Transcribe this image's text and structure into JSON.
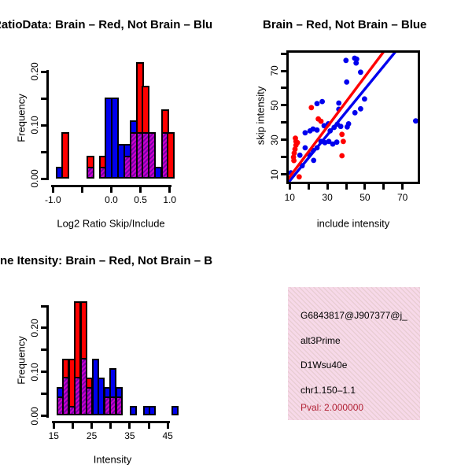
{
  "colors": {
    "red": "#ff0000",
    "blue": "#0000ee",
    "overlap_stripe_light": "#cc00cc",
    "overlap_stripe_dark": "#7a00a8",
    "axis": "#000000",
    "info_box_bg": "#f7d9e9",
    "info_box_hatch": "#cdb6a8",
    "pval_text": "#b22235"
  },
  "chart_data": [
    {
      "name": "ratio-histogram",
      "type": "bar",
      "title": "RatioData: Brain – Red, Not Brain – Blu",
      "xlabel": "Log2 Ratio Skip/Include",
      "ylabel": "Frequency",
      "xlim": [
        -1.0,
        1.1
      ],
      "ylim": [
        0,
        0.2
      ],
      "grid": false,
      "legend": "red = Brain, blue = Not Brain, purple hatch = overlap",
      "bin_width": 0.105,
      "xticks": [
        {
          "v": -1.0,
          "l": "-1.0"
        },
        {
          "v": -0.5,
          "l": ""
        },
        {
          "v": 0.0,
          "l": "0.0"
        },
        {
          "v": 0.5,
          "l": "0.5"
        },
        {
          "v": 1.0,
          "l": "1.0"
        }
      ],
      "yticks": [
        {
          "v": 0.0,
          "l": "0.00"
        },
        {
          "v": 0.05,
          "l": ""
        },
        {
          "v": 0.1,
          "l": "0.10"
        },
        {
          "v": 0.15,
          "l": ""
        },
        {
          "v": 0.2,
          "l": "0.20"
        }
      ],
      "bars": [
        {
          "x": -0.955,
          "red": 0,
          "blue": 0.022,
          "overlap": 0
        },
        {
          "x": -0.85,
          "red": 0.087,
          "blue": 0,
          "overlap": 0
        },
        {
          "x": -0.425,
          "red": 0.043,
          "blue": 0.022,
          "overlap": 0.022
        },
        {
          "x": -0.215,
          "red": 0.043,
          "blue": 0.022,
          "overlap": 0.022
        },
        {
          "x": -0.11,
          "red": 0,
          "blue": 0.152,
          "overlap": 0
        },
        {
          "x": -0.005,
          "red": 0,
          "blue": 0.152,
          "overlap": 0
        },
        {
          "x": 0.105,
          "red": 0,
          "blue": 0.065,
          "overlap": 0
        },
        {
          "x": 0.21,
          "red": 0.043,
          "blue": 0.065,
          "overlap": 0.043
        },
        {
          "x": 0.315,
          "red": 0.087,
          "blue": 0.109,
          "overlap": 0.087
        },
        {
          "x": 0.42,
          "red": 0.217,
          "blue": 0.087,
          "overlap": 0.087
        },
        {
          "x": 0.525,
          "red": 0.174,
          "blue": 0.087,
          "overlap": 0.087
        },
        {
          "x": 0.63,
          "red": 0.087,
          "blue": 0.087,
          "overlap": 0.087
        },
        {
          "x": 0.74,
          "red": 0,
          "blue": 0.022,
          "overlap": 0
        },
        {
          "x": 0.85,
          "red": 0.13,
          "blue": 0.087,
          "overlap": 0.087
        },
        {
          "x": 0.955,
          "red": 0.087,
          "blue": 0,
          "overlap": 0
        }
      ]
    },
    {
      "name": "intensity-scatter",
      "type": "scatter",
      "title": "Brain – Red, Not Brain – Blue",
      "xlabel": "include intensity",
      "ylabel": "skip intensity",
      "xlim": [
        8.3,
        79.0
      ],
      "ylim": [
        3.9,
        80.6
      ],
      "grid": false,
      "xticks": [
        {
          "v": 10,
          "l": "10"
        },
        {
          "v": 20,
          "l": ""
        },
        {
          "v": 30,
          "l": "30"
        },
        {
          "v": 40,
          "l": ""
        },
        {
          "v": 50,
          "l": "50"
        },
        {
          "v": 60,
          "l": ""
        },
        {
          "v": 70,
          "l": "70"
        }
      ],
      "yticks": [
        {
          "v": 10,
          "l": "10"
        },
        {
          "v": 20,
          "l": ""
        },
        {
          "v": 30,
          "l": "30"
        },
        {
          "v": 40,
          "l": ""
        },
        {
          "v": 50,
          "l": "50"
        },
        {
          "v": 60,
          "l": ""
        },
        {
          "v": 70,
          "l": "70"
        },
        {
          "v": 80,
          "l": ""
        }
      ],
      "blue_points": [
        [
          10.6,
          10.9
        ],
        [
          15.4,
          21.1
        ],
        [
          16.6,
          15.0
        ],
        [
          18.2,
          25.4
        ],
        [
          18.2,
          34.1
        ],
        [
          20.3,
          21.6
        ],
        [
          20.8,
          35.2
        ],
        [
          22.4,
          23.9
        ],
        [
          22.4,
          36.3
        ],
        [
          22.7,
          18.1
        ],
        [
          24.5,
          25.4
        ],
        [
          24.5,
          35.7
        ],
        [
          24.5,
          51.0
        ],
        [
          26.6,
          29.1
        ],
        [
          27.3,
          52.2
        ],
        [
          28.3,
          38.2
        ],
        [
          28.7,
          28.4
        ],
        [
          30.5,
          39.3
        ],
        [
          30.8,
          29.1
        ],
        [
          31.5,
          35.2
        ],
        [
          32.9,
          27.6
        ],
        [
          33.6,
          37.2
        ],
        [
          35.0,
          28.7
        ],
        [
          35.3,
          39.0
        ],
        [
          36.1,
          47.7
        ],
        [
          36.1,
          51.3
        ],
        [
          37.1,
          37.8
        ],
        [
          39.9,
          76.0
        ],
        [
          40.3,
          63.5
        ],
        [
          40.6,
          37.5
        ],
        [
          41.3,
          39.3
        ],
        [
          44.5,
          77.3
        ],
        [
          44.7,
          45.7
        ],
        [
          45.3,
          74.5
        ],
        [
          45.6,
          76.8
        ],
        [
          47.7,
          69.2
        ],
        [
          47.7,
          48.0
        ],
        [
          49.8,
          53.7
        ],
        [
          77.0,
          41.0
        ]
      ],
      "red_points": [
        [
          12.2,
          18.0
        ],
        [
          12.0,
          20.0
        ],
        [
          12.4,
          22.3
        ],
        [
          12.8,
          24.6
        ],
        [
          13.3,
          26.9
        ],
        [
          14.1,
          28.4
        ],
        [
          13.3,
          29.1
        ],
        [
          13.0,
          31.0
        ],
        [
          15.0,
          8.6
        ],
        [
          21.5,
          48.7
        ],
        [
          25.2,
          42.1
        ],
        [
          26.6,
          40.8
        ],
        [
          37.8,
          33.2
        ],
        [
          38.5,
          29.1
        ],
        [
          37.8,
          20.8
        ]
      ],
      "red_line": {
        "x1": 8,
        "y1": 5.7,
        "x2": 62,
        "y2": 84
      },
      "blue_line": {
        "x1": 8,
        "y1": 3.6,
        "x2": 68,
        "y2": 83.4
      }
    },
    {
      "name": "gene-intensity-histogram",
      "type": "bar",
      "title": "ne Itensity: Brain – Red, Not Brain – B",
      "xlabel": "Intensity",
      "ylabel": "Frequency",
      "xlim": [
        15,
        47.6
      ],
      "ylim": [
        0,
        0.25
      ],
      "grid": false,
      "legend": "red = Brain, blue = Not Brain, purple hatch = overlap",
      "bin_width": 1.55,
      "xticks": [
        {
          "v": 15,
          "l": "15"
        },
        {
          "v": 20,
          "l": ""
        },
        {
          "v": 25,
          "l": "25"
        },
        {
          "v": 30,
          "l": ""
        },
        {
          "v": 35,
          "l": "35"
        },
        {
          "v": 40,
          "l": ""
        },
        {
          "v": 45,
          "l": "45"
        }
      ],
      "yticks": [
        {
          "v": 0.0,
          "l": "0.00"
        },
        {
          "v": 0.05,
          "l": ""
        },
        {
          "v": 0.1,
          "l": "0.10"
        },
        {
          "v": 0.15,
          "l": ""
        },
        {
          "v": 0.2,
          "l": "0.20"
        },
        {
          "v": 0.25,
          "l": ""
        }
      ],
      "bars": [
        {
          "x": 15.7,
          "red": 0.043,
          "blue": 0.065,
          "overlap": 0.043
        },
        {
          "x": 17.25,
          "red": 0.13,
          "blue": 0.087,
          "overlap": 0.087
        },
        {
          "x": 18.8,
          "red": 0.13,
          "blue": 0.022,
          "overlap": 0.022
        },
        {
          "x": 20.35,
          "red": 0.261,
          "blue": 0.087,
          "overlap": 0.087
        },
        {
          "x": 21.9,
          "red": 0.261,
          "blue": 0.13,
          "overlap": 0.13
        },
        {
          "x": 23.45,
          "red": 0.087,
          "blue": 0.065,
          "overlap": 0.065
        },
        {
          "x": 25.0,
          "red": 0,
          "blue": 0.13,
          "overlap": 0
        },
        {
          "x": 26.55,
          "red": 0,
          "blue": 0.087,
          "overlap": 0
        },
        {
          "x": 28.1,
          "red": 0.043,
          "blue": 0.065,
          "overlap": 0.043
        },
        {
          "x": 29.65,
          "red": 0.043,
          "blue": 0.109,
          "overlap": 0.043
        },
        {
          "x": 31.2,
          "red": 0.043,
          "blue": 0.065,
          "overlap": 0.043
        },
        {
          "x": 35.0,
          "red": 0,
          "blue": 0.022,
          "overlap": 0
        },
        {
          "x": 38.5,
          "red": 0,
          "blue": 0.022,
          "overlap": 0
        },
        {
          "x": 39.95,
          "red": 0,
          "blue": 0.022,
          "overlap": 0
        },
        {
          "x": 46.0,
          "red": 0,
          "blue": 0.022,
          "overlap": 0
        }
      ]
    },
    {
      "name": "info-box",
      "type": "table",
      "lines": [
        "G6843817@J907377@j_",
        "alt3Prime",
        "D1Wsu40e",
        "chr1.150–1.1"
      ],
      "pval_label": "Pval: 2.000000"
    }
  ]
}
